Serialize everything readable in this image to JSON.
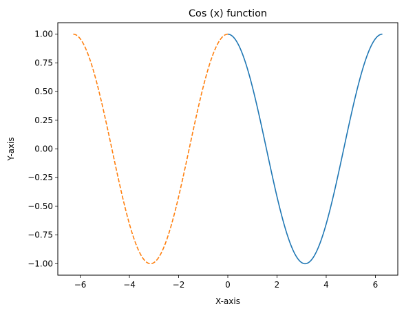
{
  "chart_data": {
    "type": "line",
    "title": "Cos (x) function",
    "xlabel": "X-axis",
    "ylabel": "Y-axis",
    "xlim": [
      -6.911,
      6.911
    ],
    "ylim": [
      -1.1,
      1.1
    ],
    "grid": false,
    "x_ticks": [
      -6,
      -4,
      -2,
      0,
      2,
      4,
      6
    ],
    "x_tick_labels": [
      "−6",
      "−4",
      "−2",
      "0",
      "2",
      "4",
      "6"
    ],
    "y_ticks": [
      -1.0,
      -0.75,
      -0.5,
      -0.25,
      0.0,
      0.25,
      0.5,
      0.75,
      1.0
    ],
    "y_tick_labels": [
      "−1.00",
      "−0.75",
      "−0.50",
      "−0.25",
      "0.00",
      "0.25",
      "0.50",
      "0.75",
      "1.00"
    ],
    "series": [
      {
        "color": "#1f77b4",
        "line_style": "solid",
        "x": [
          0,
          0.3307,
          0.6614,
          0.9921,
          1.3228,
          1.6535,
          1.9842,
          2.3149,
          2.6456,
          2.9762,
          3.3069,
          3.6376,
          3.9683,
          4.299,
          4.6297,
          4.9604,
          5.2911,
          5.6218,
          5.9525,
          6.2832
        ],
        "y": [
          1.0,
          0.9458,
          0.7891,
          0.5469,
          0.2455,
          -0.0826,
          -0.4017,
          -0.6773,
          -0.8795,
          -0.9864,
          -0.9864,
          -0.8795,
          -0.6773,
          -0.4017,
          -0.0826,
          0.2455,
          0.5469,
          0.7891,
          0.9458,
          1.0
        ]
      },
      {
        "color": "#ff7f0e",
        "line_style": "dashed",
        "x": [
          -6.2832,
          -5.9525,
          -5.6218,
          -5.2911,
          -4.9604,
          -4.6297,
          -4.299,
          -3.9683,
          -3.6376,
          -3.3069,
          -2.9762,
          -2.6456,
          -2.3149,
          -1.9842,
          -1.6535,
          -1.3228,
          -0.9921,
          -0.6614,
          -0.3307,
          0
        ],
        "y": [
          1.0,
          0.9458,
          0.7891,
          0.5469,
          0.2455,
          -0.0826,
          -0.4017,
          -0.6773,
          -0.8795,
          -0.9864,
          -0.9864,
          -0.8795,
          -0.6773,
          -0.4017,
          -0.0826,
          0.2455,
          0.5469,
          0.7891,
          0.9458,
          1.0
        ]
      }
    ]
  }
}
